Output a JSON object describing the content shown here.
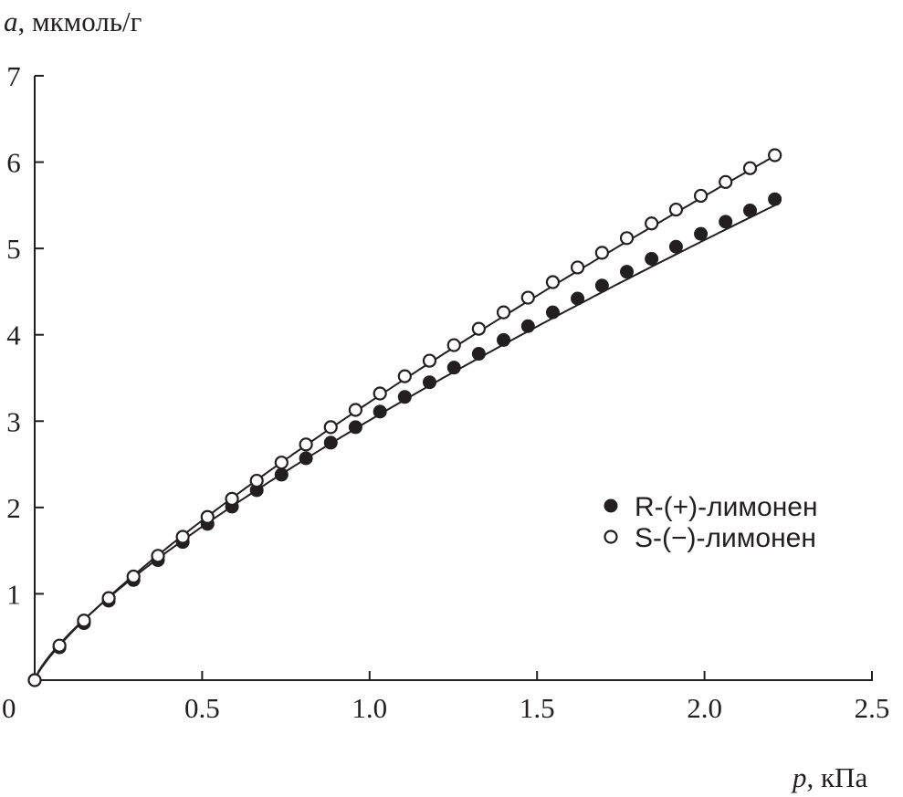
{
  "chart_data": {
    "type": "scatter",
    "title": "",
    "xlabel_var": "p",
    "xlabel_unit": ", кПа",
    "ylabel_var": "a",
    "ylabel_unit": ", мкмоль/г",
    "xlim": [
      0,
      2.5
    ],
    "ylim": [
      0,
      7
    ],
    "xticks": [
      0.5,
      1.0,
      1.5,
      2.0,
      2.5
    ],
    "xtick_labels": [
      "0.5",
      "1.0",
      "1.5",
      "2.0",
      "2.5"
    ],
    "yticks": [
      1,
      2,
      3,
      4,
      5,
      6,
      7
    ],
    "ytick_labels": [
      "1",
      "2",
      "3",
      "4",
      "5",
      "6",
      "7"
    ],
    "origin_label": "0",
    "grid": false,
    "legend_position": "center-right",
    "x": [
      0,
      0.074,
      0.147,
      0.221,
      0.295,
      0.368,
      0.442,
      0.516,
      0.589,
      0.663,
      0.737,
      0.81,
      0.884,
      0.958,
      1.031,
      1.105,
      1.179,
      1.252,
      1.326,
      1.4,
      1.473,
      1.547,
      1.621,
      1.694,
      1.768,
      1.842,
      1.915,
      1.989,
      2.063,
      2.136,
      2.21
    ],
    "series": [
      {
        "name": "R-(+)-лимонен",
        "marker": "filled-circle",
        "values": [
          0,
          0.38,
          0.66,
          0.92,
          1.16,
          1.39,
          1.6,
          1.81,
          2.01,
          2.2,
          2.38,
          2.57,
          2.75,
          2.93,
          3.11,
          3.28,
          3.45,
          3.62,
          3.78,
          3.94,
          4.1,
          4.26,
          4.42,
          4.57,
          4.73,
          4.88,
          5.02,
          5.17,
          5.31,
          5.44,
          5.57
        ],
        "fit": {
          "type": "power",
          "k": 3.01,
          "n": 0.76
        }
      },
      {
        "name": "S-(−)-лимонен",
        "marker": "open-circle",
        "values": [
          0,
          0.4,
          0.69,
          0.95,
          1.2,
          1.44,
          1.66,
          1.89,
          2.1,
          2.31,
          2.52,
          2.73,
          2.93,
          3.13,
          3.32,
          3.52,
          3.7,
          3.88,
          4.07,
          4.26,
          4.43,
          4.61,
          4.78,
          4.95,
          5.12,
          5.29,
          5.45,
          5.61,
          5.77,
          5.93,
          6.08
        ],
        "fit": {
          "type": "power",
          "k": 3.22,
          "n": 0.8
        }
      }
    ],
    "colors": {
      "ink": "#231f20",
      "background": "#ffffff"
    }
  }
}
